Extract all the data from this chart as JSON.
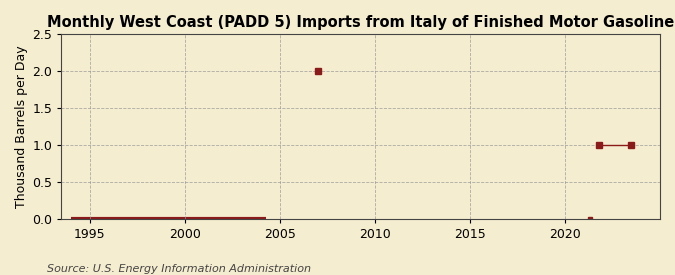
{
  "title": "Monthly West Coast (PADD 5) Imports from Italy of Finished Motor Gasoline",
  "ylabel": "Thousand Barrels per Day",
  "source": "Source: U.S. Energy Information Administration",
  "xlim": [
    1993.5,
    2025
  ],
  "ylim": [
    0,
    2.5
  ],
  "yticks": [
    0.0,
    0.5,
    1.0,
    1.5,
    2.0,
    2.5
  ],
  "xticks": [
    1995,
    2000,
    2005,
    2010,
    2015,
    2020
  ],
  "background_color": "#f5edcf",
  "line_color": "#8b1a1a",
  "grid_color": "#999999",
  "line_start_x": 1994.0,
  "line_end_x": 2004.3,
  "point_2007_x": 2007.0,
  "point_2007_y": 2.0,
  "point_2021_x": 2021.3,
  "point_2021_y": 0.0,
  "point_2022_x": 2021.8,
  "point_2022_y": 1.0,
  "point_2023_x": 2023.5,
  "point_2023_y": 1.0,
  "title_fontsize": 10.5,
  "axis_fontsize": 9,
  "source_fontsize": 8
}
